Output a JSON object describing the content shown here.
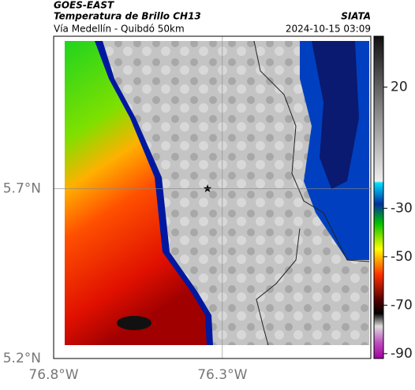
{
  "header": {
    "title": "GOES-EAST",
    "subtitle": "Temperatura de Brillo CH13",
    "source": "SIATA",
    "route": "Vía Medellín - Quibdó 50km",
    "timestamp": "2024-10-15 03:09"
  },
  "map": {
    "xlim": [
      -76.8,
      -75.86
    ],
    "ylim": [
      5.2,
      6.15
    ],
    "xticks": [
      {
        "value": -76.8,
        "label": "76.8°W"
      },
      {
        "value": -76.3,
        "label": "76.3°W"
      }
    ],
    "yticks": [
      {
        "value": 5.2,
        "label": "5.2°N"
      },
      {
        "value": 5.7,
        "label": "5.7°N"
      }
    ],
    "grid": true
  },
  "colorbar": {
    "lim": [
      -92,
      41
    ],
    "ticks": [
      20,
      -30,
      -50,
      -70,
      -90
    ]
  }
}
